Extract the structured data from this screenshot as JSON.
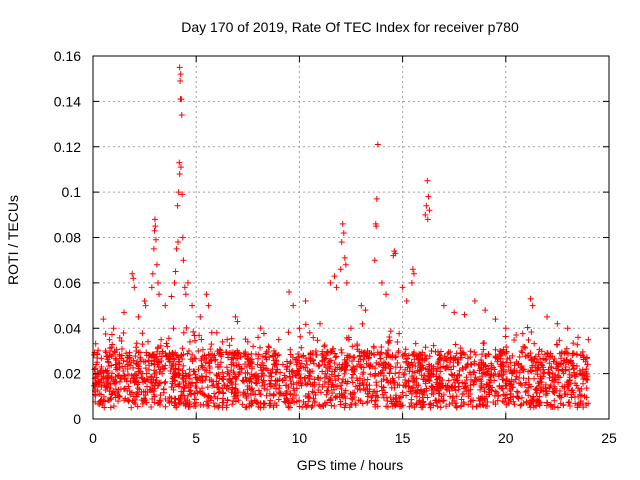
{
  "chart_data": {
    "type": "scatter",
    "title": "Day 170 of 2019, Rate Of TEC Index for receiver p780",
    "xlabel": "GPS time / hours",
    "ylabel": "ROTI / TECUs",
    "xlim": [
      0,
      25
    ],
    "ylim": [
      0,
      0.16
    ],
    "xticks": [
      0,
      5,
      10,
      15,
      20,
      25
    ],
    "xtick_labels": [
      "0",
      "5",
      "10",
      "15",
      "20",
      "25"
    ],
    "yticks": [
      0,
      0.02,
      0.04,
      0.06,
      0.08,
      0.1,
      0.12,
      0.14,
      0.16
    ],
    "ytick_labels": [
      "0",
      "0.02",
      "0.04",
      "0.06",
      "0.08",
      "0.1",
      "0.12",
      "0.14",
      "0.16"
    ],
    "grid": true,
    "marker": "plus",
    "color": "#ff0000",
    "series": [
      {
        "name": "ROTI",
        "x": [
          4.2,
          4.25,
          4.22,
          4.28,
          4.24,
          4.3,
          4.18,
          4.26,
          4.2,
          4.15,
          4.32,
          4.1,
          4.35,
          4.12,
          4.05,
          4.38,
          4.0,
          4.45,
          3.95,
          4.5,
          3.0,
          3.02,
          2.98,
          3.05,
          2.95,
          3.1,
          2.9,
          3.15,
          2.85,
          3.2,
          13.8,
          13.75,
          13.7,
          13.72,
          13.65,
          12.1,
          12.15,
          12.05,
          12.2,
          12.25,
          12.0,
          12.3,
          16.2,
          16.25,
          16.15,
          16.3,
          16.1,
          16.22,
          14.6,
          14.65,
          14.55,
          15.5,
          15.55,
          15.45,
          1.9,
          1.95,
          2.0,
          2.5,
          2.55,
          5.5,
          5.6,
          6.9,
          7.0,
          9.5,
          9.7,
          10.3,
          11.5,
          11.7,
          11.8,
          13.0,
          13.2,
          14.0,
          14.2,
          15.0,
          15.2,
          17.0,
          17.5,
          18.0,
          18.5,
          19.0,
          19.5,
          20.0,
          20.5,
          21.2,
          21.3,
          22.0,
          22.5,
          23.0,
          23.5,
          24.0,
          0.5,
          0.8,
          1.0,
          1.5,
          2.2,
          3.5,
          3.8,
          4.6,
          4.8,
          5.2,
          6.0,
          6.5,
          7.5,
          8.0,
          8.5,
          9.0,
          10.0,
          10.5,
          11.0,
          12.5,
          0.2,
          0.4,
          0.6,
          0.9,
          1.2,
          1.4,
          1.7,
          2.1,
          2.4,
          2.7,
          3.3,
          3.6,
          3.9,
          4.4,
          4.7,
          5.1,
          5.4,
          5.7,
          6.2,
          6.7,
          7.2,
          7.7,
          8.2,
          8.7,
          9.2,
          9.8,
          10.2,
          10.8,
          11.2,
          11.6,
          12.4,
          12.8,
          13.3,
          13.6,
          14.3,
          14.8,
          15.3,
          15.8,
          16.4,
          16.8,
          17.3,
          17.8,
          18.3,
          18.8,
          19.3,
          19.8,
          20.3,
          20.8,
          21.5,
          22.2,
          22.8,
          23.3,
          23.8,
          0.1,
          0.3,
          0.7,
          1.1,
          1.6,
          2.6,
          3.4
        ],
        "y": [
          0.155,
          0.152,
          0.149,
          0.141,
          0.141,
          0.134,
          0.113,
          0.111,
          0.108,
          0.1,
          0.099,
          0.094,
          0.08,
          0.078,
          0.075,
          0.07,
          0.065,
          0.058,
          0.06,
          0.055,
          0.088,
          0.085,
          0.083,
          0.079,
          0.075,
          0.068,
          0.064,
          0.06,
          0.058,
          0.055,
          0.121,
          0.097,
          0.086,
          0.085,
          0.07,
          0.086,
          0.082,
          0.078,
          0.071,
          0.068,
          0.066,
          0.06,
          0.105,
          0.098,
          0.094,
          0.092,
          0.09,
          0.088,
          0.074,
          0.073,
          0.072,
          0.066,
          0.064,
          0.06,
          0.064,
          0.062,
          0.058,
          0.052,
          0.05,
          0.055,
          0.05,
          0.045,
          0.043,
          0.056,
          0.05,
          0.052,
          0.06,
          0.063,
          0.058,
          0.05,
          0.048,
          0.06,
          0.055,
          0.058,
          0.052,
          0.05,
          0.047,
          0.046,
          0.052,
          0.048,
          0.044,
          0.04,
          0.037,
          0.053,
          0.05,
          0.045,
          0.042,
          0.04,
          0.036,
          0.035,
          0.044,
          0.035,
          0.04,
          0.047,
          0.045,
          0.05,
          0.054,
          0.06,
          0.05,
          0.045,
          0.038,
          0.035,
          0.034,
          0.036,
          0.032,
          0.035,
          0.04,
          0.038,
          0.042,
          0.04,
          0.025,
          0.02,
          0.03,
          0.018,
          0.022,
          0.028,
          0.024,
          0.03,
          0.033,
          0.028,
          0.035,
          0.032,
          0.04,
          0.038,
          0.034,
          0.03,
          0.028,
          0.026,
          0.025,
          0.024,
          0.022,
          0.023,
          0.02,
          0.022,
          0.024,
          0.026,
          0.028,
          0.03,
          0.032,
          0.03,
          0.035,
          0.033,
          0.03,
          0.032,
          0.034,
          0.03,
          0.028,
          0.026,
          0.03,
          0.028,
          0.025,
          0.027,
          0.024,
          0.026,
          0.022,
          0.024,
          0.02,
          0.022,
          0.025,
          0.023,
          0.02,
          0.022,
          0.02,
          0.012,
          0.015,
          0.014,
          0.016,
          0.018,
          0.02,
          0.022
        ]
      }
    ],
    "bulk_band": {
      "description_level": "dense band of points",
      "x_range": [
        0,
        24
      ],
      "y_min_typical": 0.005,
      "y_max_typical": 0.03
    }
  }
}
